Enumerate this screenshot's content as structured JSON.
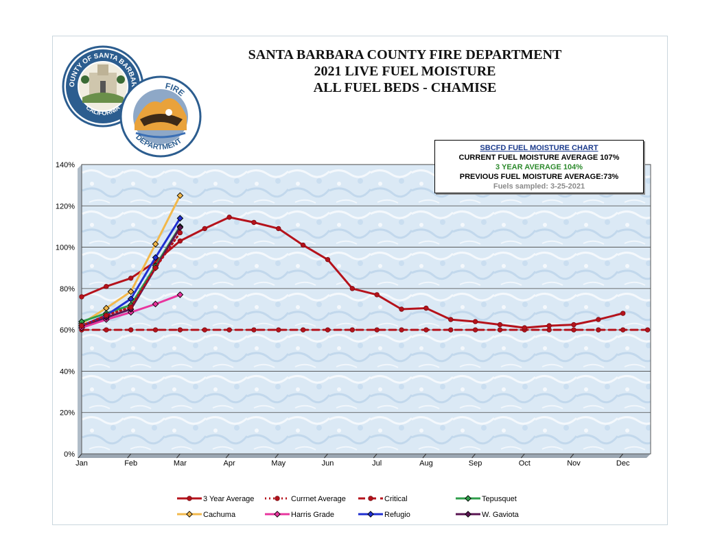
{
  "header": {
    "title_line1": "SANTA BARBARA COUNTY FIRE DEPARTMENT",
    "title_line2": "2021 LIVE FUEL MOISTURE",
    "title_line3": "ALL FUEL BEDS - CHAMISE"
  },
  "logos": {
    "county_seal_text_top": "COUNTY OF SANTA BARBARA",
    "county_seal_text_bottom": "CALIFORNIA",
    "fire_dept_text_top": "FIRE",
    "fire_dept_text_bottom": "DEPARTMENT"
  },
  "infobox": {
    "heading": "SBCFD FUEL MOISTURE CHART",
    "current": "CURRENT FUEL MOISTURE AVERAGE 107%",
    "three_year": "3 YEAR AVERAGE 104%",
    "previous": "PREVIOUS FUEL MOISTURE AVERAGE:73%",
    "sampled": "Fuels sampled: 3-25-2021"
  },
  "chart_data": {
    "type": "line",
    "xlim": [
      0,
      11.6
    ],
    "ylim": [
      0,
      140
    ],
    "y_ticks": [
      0,
      20,
      40,
      60,
      80,
      100,
      120,
      140
    ],
    "y_tick_labels": [
      "0%",
      "20%",
      "40%",
      "60%",
      "80%",
      "100%",
      "120%",
      "140%"
    ],
    "x_ticks": [
      0,
      1,
      2,
      3,
      4,
      5,
      6,
      7,
      8,
      9,
      10,
      11
    ],
    "x_tick_labels": [
      "Jan",
      "Feb",
      "Mar",
      "Apr",
      "May",
      "Jun",
      "Jul",
      "Aug",
      "Sep",
      "Oct",
      "Nov",
      "Dec"
    ],
    "grid": true,
    "legend_position": "bottom",
    "series": [
      {
        "name": "3 Year Average",
        "color": "#b5121b",
        "style": "solid",
        "marker": "circle",
        "x": [
          0,
          0.5,
          1,
          1.5,
          2,
          2.5,
          3,
          3.5,
          4,
          4.5,
          5,
          5.5,
          6,
          6.5,
          7,
          7.5,
          8,
          8.5,
          9,
          9.5,
          10,
          10.5,
          11
        ],
        "y": [
          76,
          81,
          85,
          93,
          103,
          109,
          114.5,
          112,
          109,
          101,
          94,
          80,
          77,
          70,
          70.5,
          65,
          64,
          62.5,
          61,
          62,
          62.5,
          65,
          68
        ]
      },
      {
        "name": "Currnet Average",
        "color": "#b5121b",
        "style": "dotted",
        "marker": "circle",
        "x": [
          0,
          0.5,
          1,
          1.5,
          2
        ],
        "y": [
          62,
          67,
          71,
          90,
          107
        ]
      },
      {
        "name": "Critical",
        "color": "#b5121b",
        "style": "dashed",
        "marker": "circle",
        "x": [
          0,
          0.5,
          1,
          1.5,
          2,
          2.5,
          3,
          3.5,
          4,
          4.5,
          5,
          5.5,
          6,
          6.5,
          7,
          7.5,
          8,
          8.5,
          9,
          9.5,
          10,
          10.5,
          11,
          11.5
        ],
        "y": [
          60,
          60,
          60,
          60,
          60,
          60,
          60,
          60,
          60,
          60,
          60,
          60,
          60,
          60,
          60,
          60,
          60,
          60,
          60,
          60,
          60,
          60,
          60,
          60
        ]
      },
      {
        "name": "Tepusquet",
        "color": "#2e9e4a",
        "style": "solid",
        "marker": "diamond",
        "x": [
          0,
          0.5,
          1,
          1.5,
          2
        ],
        "y": [
          64,
          68,
          72,
          91,
          110
        ]
      },
      {
        "name": "Cachuma",
        "color": "#f2b84b",
        "style": "solid",
        "marker": "diamond",
        "x": [
          0,
          0.5,
          1,
          1.5,
          2
        ],
        "y": [
          63,
          70.5,
          78.5,
          101.5,
          125
        ]
      },
      {
        "name": "Harris Grade",
        "color": "#e8359e",
        "style": "solid",
        "marker": "diamond",
        "x": [
          0,
          0.5,
          1,
          1.5,
          2
        ],
        "y": [
          61,
          65,
          68.5,
          72.5,
          77
        ]
      },
      {
        "name": "Refugio",
        "color": "#1f2fd1",
        "style": "solid",
        "marker": "diamond",
        "x": [
          0,
          0.5,
          1,
          1.5,
          2
        ],
        "y": [
          62,
          67,
          75,
          95,
          114
        ]
      },
      {
        "name": "W. Gaviota",
        "color": "#5a1452",
        "style": "solid",
        "marker": "diamond",
        "x": [
          0,
          0.5,
          1,
          1.5,
          2
        ],
        "y": [
          62,
          66,
          70,
          90,
          109.5
        ]
      }
    ]
  }
}
